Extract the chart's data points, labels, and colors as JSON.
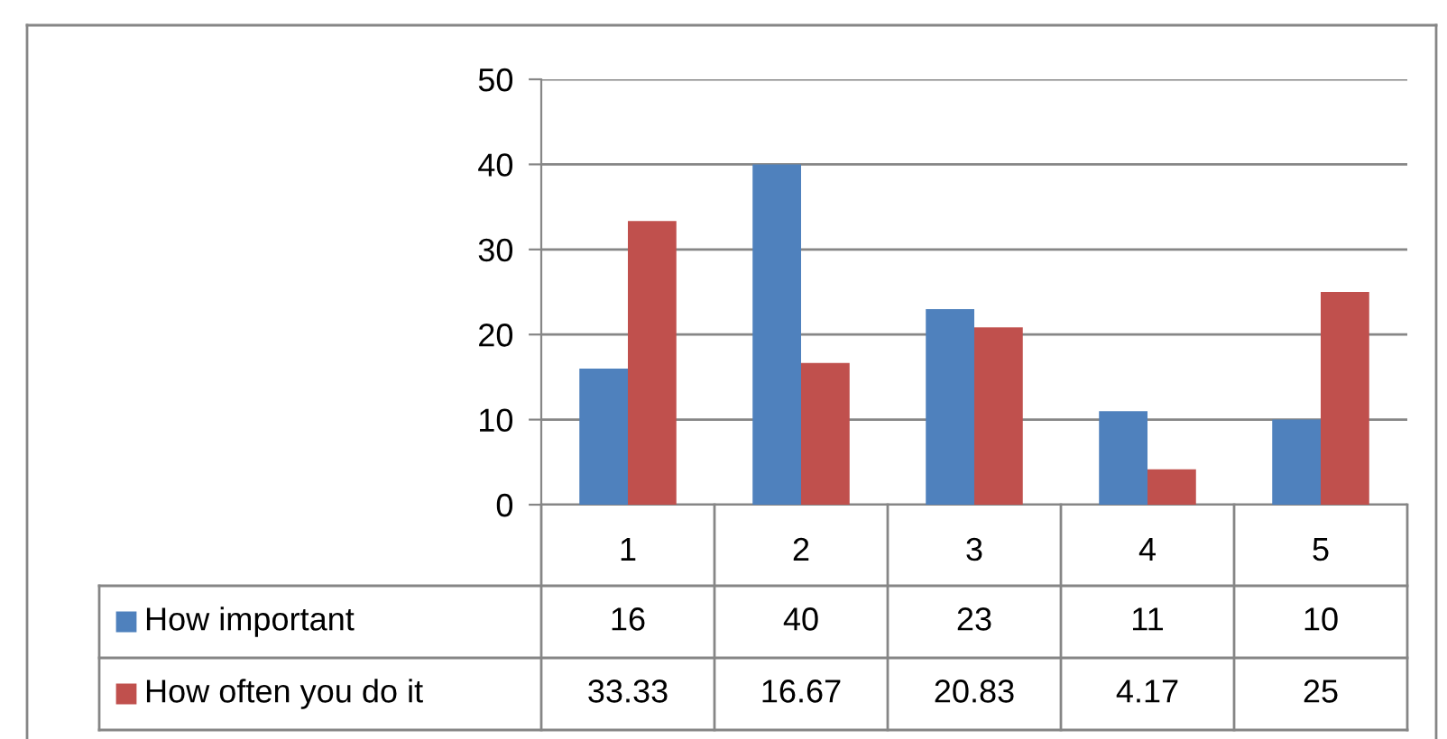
{
  "chart_data": {
    "type": "bar",
    "categories": [
      "1",
      "2",
      "3",
      "4",
      "5"
    ],
    "series": [
      {
        "name": "How important",
        "color": "#4f81bd",
        "values": [
          16,
          40,
          23,
          11,
          10
        ]
      },
      {
        "name": "How often you do it",
        "color": "#c0504d",
        "values": [
          33.33,
          16.67,
          20.83,
          4.17,
          25
        ]
      }
    ],
    "ylim": [
      0,
      50
    ],
    "yticks": [
      0,
      10,
      20,
      30,
      40,
      50
    ],
    "grid": "y",
    "legend": "bottom",
    "data_labels": true
  }
}
